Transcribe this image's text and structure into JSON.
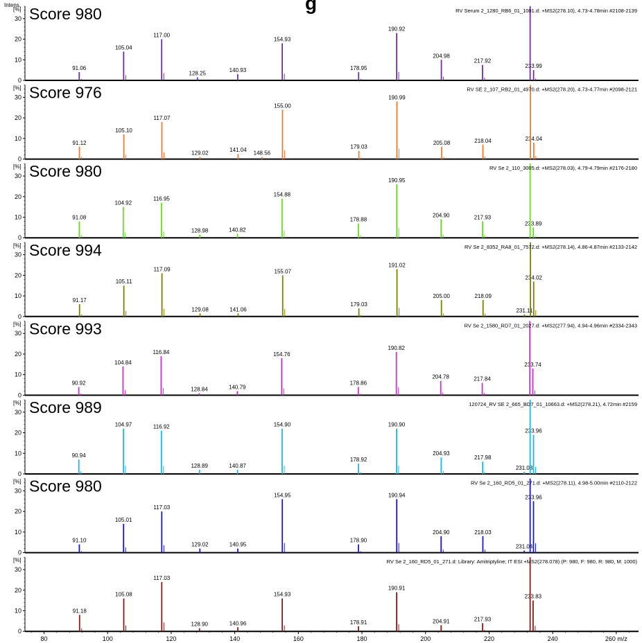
{
  "page": {
    "header_fragment": "g",
    "y_axis_title": "Intens.",
    "y_axis_unit": "[%]",
    "x_axis_unit": "m/z"
  },
  "chart_data": {
    "type": "stacked mass spectra (stick plot)",
    "xlim": [
      74,
      267
    ],
    "ylim": [
      0,
      36
    ],
    "x_ticks": [
      80,
      100,
      120,
      140,
      160,
      180,
      200,
      220,
      240,
      260
    ],
    "x_tick_labels": [
      "80",
      "100",
      "120",
      "140",
      "160",
      "180",
      "200",
      "220",
      "240",
      "260 m/z"
    ],
    "y_ticks": [
      0,
      10,
      20,
      30
    ],
    "grid": false,
    "panels": [
      {
        "score_label": "Score 980",
        "header": "RV Serum 2_1280_RB6_01_1001.d: +MS2(278.10), 4.73-4.78min #2108-2139",
        "color": "#7030a0",
        "peaks": [
          {
            "mz": 91.06,
            "i": 4,
            "label": "91.06"
          },
          {
            "mz": 105.04,
            "i": 14,
            "label": "105.04"
          },
          {
            "mz": 117.0,
            "i": 20,
            "label": "117.00"
          },
          {
            "mz": 128.25,
            "i": 1.5,
            "label": "128.25"
          },
          {
            "mz": 140.93,
            "i": 3,
            "label": "140.93"
          },
          {
            "mz": 154.93,
            "i": 18,
            "label": "154.93"
          },
          {
            "mz": 178.95,
            "i": 4,
            "label": "178.95"
          },
          {
            "mz": 190.92,
            "i": 23,
            "label": "190.92"
          },
          {
            "mz": 204.98,
            "i": 10,
            "label": "204.98"
          },
          {
            "mz": 217.92,
            "i": 7.5,
            "label": "217.92"
          },
          {
            "mz": 233.99,
            "i": 5,
            "label": "233.99"
          },
          {
            "mz": 232.9,
            "i": 100,
            "label": ""
          }
        ]
      },
      {
        "score_label": "Score 976",
        "header": "RV SE 2_107_RB2_01_4970.d: +MS2(278.20), 4.73-4.77min #2098-2121",
        "color": "#ed7d31",
        "peaks": [
          {
            "mz": 91.12,
            "i": 6,
            "label": "91.12"
          },
          {
            "mz": 105.1,
            "i": 12,
            "label": "105.10"
          },
          {
            "mz": 117.07,
            "i": 18,
            "label": "117.07"
          },
          {
            "mz": 129.02,
            "i": 1,
            "label": "129.02"
          },
          {
            "mz": 141.04,
            "i": 2.5,
            "label": "141.04"
          },
          {
            "mz": 148.56,
            "i": 1,
            "label": "148.56"
          },
          {
            "mz": 155.0,
            "i": 24,
            "label": "155.00"
          },
          {
            "mz": 179.03,
            "i": 4,
            "label": "179.03"
          },
          {
            "mz": 190.99,
            "i": 28,
            "label": "190.99"
          },
          {
            "mz": 205.08,
            "i": 6,
            "label": "205.08"
          },
          {
            "mz": 218.04,
            "i": 7,
            "label": "218.04"
          },
          {
            "mz": 234.04,
            "i": 8,
            "label": "234.04"
          },
          {
            "mz": 233.0,
            "i": 100,
            "label": ""
          }
        ]
      },
      {
        "score_label": "Score 980",
        "header": "RV Se 2_110_3005.d: +MS2(278.03), 4.79-4.79min #2176-2180",
        "color": "#66dd22",
        "peaks": [
          {
            "mz": 91.08,
            "i": 8,
            "label": "91.08"
          },
          {
            "mz": 104.92,
            "i": 15,
            "label": "104.92"
          },
          {
            "mz": 116.95,
            "i": 17,
            "label": "116.95"
          },
          {
            "mz": 128.98,
            "i": 1.5,
            "label": "128.98"
          },
          {
            "mz": 140.82,
            "i": 2,
            "label": "140.82"
          },
          {
            "mz": 154.88,
            "i": 19,
            "label": "154.88"
          },
          {
            "mz": 178.88,
            "i": 7,
            "label": "178.88"
          },
          {
            "mz": 190.95,
            "i": 26,
            "label": "190.95"
          },
          {
            "mz": 204.9,
            "i": 9,
            "label": "204.90"
          },
          {
            "mz": 217.93,
            "i": 8,
            "label": "217.93"
          },
          {
            "mz": 233.89,
            "i": 5,
            "label": "233.89"
          },
          {
            "mz": 232.9,
            "i": 100,
            "label": ""
          }
        ]
      },
      {
        "score_label": "Score 994",
        "header": "RV Se 2_8352_RA8_01_7572.d: +MS2(278.14), 4.86-4.87min #2133-2142",
        "color": "#808000",
        "peaks": [
          {
            "mz": 91.17,
            "i": 6,
            "label": "91.17"
          },
          {
            "mz": 105.11,
            "i": 15,
            "label": "105.11"
          },
          {
            "mz": 117.09,
            "i": 21,
            "label": "117.09"
          },
          {
            "mz": 129.08,
            "i": 1.5,
            "label": "129.08"
          },
          {
            "mz": 141.06,
            "i": 1.5,
            "label": "141.06"
          },
          {
            "mz": 155.07,
            "i": 20,
            "label": "155.07"
          },
          {
            "mz": 179.03,
            "i": 4,
            "label": "179.03"
          },
          {
            "mz": 191.02,
            "i": 23,
            "label": "191.02"
          },
          {
            "mz": 205.0,
            "i": 8,
            "label": "205.00"
          },
          {
            "mz": 218.09,
            "i": 8,
            "label": "218.09"
          },
          {
            "mz": 231.11,
            "i": 1,
            "label": "231.11"
          },
          {
            "mz": 234.02,
            "i": 17,
            "label": "234.02"
          },
          {
            "mz": 233.0,
            "i": 100,
            "label": ""
          }
        ]
      },
      {
        "score_label": "Score 993",
        "header": "RV Se 2_1580_RD7_01_2027.d: +MS2(277.94), 4.94-4.96min #2334-2343",
        "color": "#cc33cc",
        "peaks": [
          {
            "mz": 90.92,
            "i": 4,
            "label": "90.92"
          },
          {
            "mz": 104.84,
            "i": 14,
            "label": "104.84"
          },
          {
            "mz": 116.84,
            "i": 19,
            "label": "116.84"
          },
          {
            "mz": 128.84,
            "i": 1,
            "label": "128.84"
          },
          {
            "mz": 140.79,
            "i": 2,
            "label": "140.79"
          },
          {
            "mz": 154.76,
            "i": 18,
            "label": "154.76"
          },
          {
            "mz": 178.86,
            "i": 4,
            "label": "178.86"
          },
          {
            "mz": 190.82,
            "i": 21,
            "label": "190.82"
          },
          {
            "mz": 204.78,
            "i": 7,
            "label": "204.78"
          },
          {
            "mz": 217.84,
            "i": 6,
            "label": "217.84"
          },
          {
            "mz": 233.74,
            "i": 13,
            "label": "233.74"
          },
          {
            "mz": 232.8,
            "i": 100,
            "label": ""
          }
        ]
      },
      {
        "score_label": "Score 989",
        "header": "120724_RV SE 2_665_BD7_01_10663.d: +MS2(278.21), 4.72min #2159",
        "color": "#1cb8e0",
        "peaks": [
          {
            "mz": 90.94,
            "i": 7,
            "label": "90.94"
          },
          {
            "mz": 104.97,
            "i": 22,
            "label": "104.97"
          },
          {
            "mz": 116.92,
            "i": 21,
            "label": "116.92"
          },
          {
            "mz": 128.89,
            "i": 2,
            "label": "128.89"
          },
          {
            "mz": 140.87,
            "i": 2,
            "label": "140.87"
          },
          {
            "mz": 154.9,
            "i": 22,
            "label": "154.90"
          },
          {
            "mz": 178.92,
            "i": 5,
            "label": "178.92"
          },
          {
            "mz": 190.9,
            "i": 22,
            "label": "190.90"
          },
          {
            "mz": 204.93,
            "i": 8,
            "label": "204.93"
          },
          {
            "mz": 217.98,
            "i": 6,
            "label": "217.98"
          },
          {
            "mz": 231.03,
            "i": 1,
            "label": "231.03"
          },
          {
            "mz": 233.96,
            "i": 19,
            "label": "233.96"
          },
          {
            "mz": 232.9,
            "i": 100,
            "label": ""
          }
        ]
      },
      {
        "score_label": "Score 980",
        "header": "RV Se 2_160_RD5_01_271.d: +MS2(278.11), 4.98-5.00min #2110-2122",
        "color": "#1a1ac8",
        "peaks": [
          {
            "mz": 91.1,
            "i": 4,
            "label": "91.10"
          },
          {
            "mz": 105.01,
            "i": 14,
            "label": "105.01"
          },
          {
            "mz": 117.03,
            "i": 20,
            "label": "117.03"
          },
          {
            "mz": 129.02,
            "i": 2,
            "label": "129.02"
          },
          {
            "mz": 140.95,
            "i": 2,
            "label": "140.95"
          },
          {
            "mz": 154.95,
            "i": 26,
            "label": "154.95"
          },
          {
            "mz": 178.9,
            "i": 4,
            "label": "178.90"
          },
          {
            "mz": 190.94,
            "i": 26,
            "label": "190.94"
          },
          {
            "mz": 204.9,
            "i": 8,
            "label": "204.90"
          },
          {
            "mz": 218.03,
            "i": 8,
            "label": "218.03"
          },
          {
            "mz": 231.04,
            "i": 1,
            "label": "231.04"
          },
          {
            "mz": 233.96,
            "i": 25,
            "label": "233.96"
          },
          {
            "mz": 232.9,
            "i": 100,
            "label": ""
          }
        ]
      },
      {
        "score_label": "",
        "header": "RV Se 2_160_RD5_01_271.d: Library: Amitriptyline; IT ESI +MS2(278.078) (P: 980, F: 980, R: 980, M: 1000)",
        "color": "#8b1a1a",
        "peaks": [
          {
            "mz": 91.18,
            "i": 8,
            "label": "91.18"
          },
          {
            "mz": 105.08,
            "i": 16,
            "label": "105.08"
          },
          {
            "mz": 117.03,
            "i": 24,
            "label": "117.03"
          },
          {
            "mz": 128.9,
            "i": 1.5,
            "label": "128.90"
          },
          {
            "mz": 140.96,
            "i": 2,
            "label": "140.96"
          },
          {
            "mz": 154.93,
            "i": 16,
            "label": "154.93"
          },
          {
            "mz": 178.91,
            "i": 2.5,
            "label": "178.91"
          },
          {
            "mz": 190.91,
            "i": 19,
            "label": "190.91"
          },
          {
            "mz": 204.91,
            "i": 3,
            "label": "204.91"
          },
          {
            "mz": 217.93,
            "i": 4,
            "label": "217.93"
          },
          {
            "mz": 233.83,
            "i": 15,
            "label": "233.83"
          },
          {
            "mz": 232.9,
            "i": 100,
            "label": ""
          }
        ]
      }
    ]
  }
}
